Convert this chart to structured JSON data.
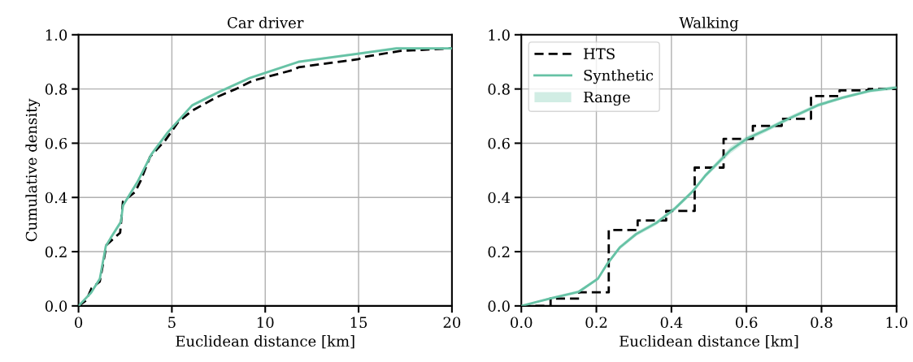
{
  "chart_data": [
    {
      "type": "line",
      "title": "Car driver",
      "xlabel": "Euclidean distance [km]",
      "ylabel": "Cumulative density",
      "xlim": [
        0,
        20
      ],
      "ylim": [
        0,
        1.0
      ],
      "xticks": [
        0,
        5,
        10,
        15,
        20
      ],
      "yticks": [
        {
          "value": 0,
          "label": "0.0"
        },
        {
          "value": 0.2,
          "label": "0.2"
        },
        {
          "value": 0.4,
          "label": "0.4"
        },
        {
          "value": 0.6,
          "label": "0.6"
        },
        {
          "value": 0.8,
          "label": "0.8"
        },
        {
          "value": 1.0,
          "label": "1.0"
        }
      ],
      "grid": true,
      "legend": false,
      "series": [
        {
          "type": "line",
          "color": "#000000",
          "line_style": "dashed",
          "x": [
            0,
            0.41,
            0.7,
            1.14,
            1.5,
            2.23,
            2.38,
            3.03,
            3.32,
            3.83,
            4.64,
            5.36,
            6.09,
            7.4,
            8.43,
            9.3,
            11.49,
            11.78,
            14.99,
            15.42,
            17.2,
            20
          ],
          "values": [
            0,
            0.02,
            0.065,
            0.09,
            0.225,
            0.27,
            0.385,
            0.42,
            0.46,
            0.55,
            0.61,
            0.68,
            0.72,
            0.77,
            0.8,
            0.83,
            0.87,
            0.88,
            0.91,
            0.92,
            0.94,
            0.95
          ]
        },
        {
          "type": "line",
          "color": "#66c2a5",
          "line_style": "solid",
          "x": [
            0,
            0.67,
            1.14,
            1.46,
            1.72,
            2.27,
            2.38,
            3.18,
            3.91,
            4.78,
            6.09,
            7.55,
            9.15,
            11.78,
            14.99,
            17.03,
            20
          ],
          "values": [
            0,
            0.048,
            0.1,
            0.22,
            0.25,
            0.31,
            0.37,
            0.46,
            0.56,
            0.64,
            0.74,
            0.79,
            0.84,
            0.9,
            0.93,
            0.95,
            0.95
          ],
          "lower": [
            0,
            0.043,
            0.094,
            0.212,
            0.242,
            0.3,
            0.362,
            0.452,
            0.552,
            0.633,
            0.734,
            0.784,
            0.835,
            0.895,
            0.925,
            0.945,
            0.947
          ],
          "upper": [
            0,
            0.053,
            0.106,
            0.228,
            0.258,
            0.32,
            0.378,
            0.468,
            0.568,
            0.647,
            0.746,
            0.796,
            0.845,
            0.905,
            0.935,
            0.955,
            0.953
          ]
        }
      ]
    },
    {
      "type": "line",
      "title": "Walking",
      "xlabel": "Euclidean distance [km]",
      "xlim": [
        0,
        1.0
      ],
      "ylim": [
        0,
        1.0
      ],
      "xticks": [
        {
          "value": 0,
          "label": "0.0"
        },
        {
          "value": 0.2,
          "label": "0.2"
        },
        {
          "value": 0.4,
          "label": "0.4"
        },
        {
          "value": 0.6,
          "label": "0.6"
        },
        {
          "value": 0.8,
          "label": "0.8"
        },
        {
          "value": 1.0,
          "label": "1.0"
        }
      ],
      "yticks": [
        {
          "value": 0,
          "label": "0.0"
        },
        {
          "value": 0.2,
          "label": "0.2"
        },
        {
          "value": 0.4,
          "label": "0.4"
        },
        {
          "value": 0.6,
          "label": "0.6"
        },
        {
          "value": 0.8,
          "label": "0.8"
        },
        {
          "value": 1.0,
          "label": "1.0"
        }
      ],
      "grid": true,
      "legend": "top left",
      "series": [
        {
          "name": "HTS",
          "type": "step",
          "color": "#000000",
          "line_style": "dashed",
          "x": [
            0,
            0.078,
            0.154,
            0.233,
            0.31,
            0.386,
            0.462,
            0.539,
            0.617,
            0.694,
            0.772,
            0.848,
            0.925,
            1.0
          ],
          "values": [
            0,
            0.027,
            0.05,
            0.28,
            0.315,
            0.35,
            0.51,
            0.616,
            0.664,
            0.69,
            0.774,
            0.795,
            0.8,
            0.8
          ]
        },
        {
          "name": "Synthetic",
          "type": "line",
          "color": "#66c2a5",
          "line_style": "solid",
          "x": [
            0,
            0.076,
            0.153,
            0.204,
            0.229,
            0.262,
            0.306,
            0.36,
            0.41,
            0.455,
            0.49,
            0.557,
            0.6,
            0.652,
            0.71,
            0.79,
            0.856,
            0.929,
            1.0
          ],
          "values": [
            0,
            0.027,
            0.052,
            0.1,
            0.155,
            0.215,
            0.265,
            0.306,
            0.36,
            0.42,
            0.48,
            0.574,
            0.616,
            0.649,
            0.689,
            0.74,
            0.768,
            0.793,
            0.805
          ],
          "lower": [
            0,
            0.022,
            0.046,
            0.094,
            0.148,
            0.207,
            0.257,
            0.298,
            0.352,
            0.412,
            0.472,
            0.562,
            0.606,
            0.641,
            0.681,
            0.733,
            0.762,
            0.787,
            0.798
          ],
          "upper": [
            0,
            0.032,
            0.058,
            0.106,
            0.162,
            0.223,
            0.273,
            0.314,
            0.368,
            0.428,
            0.488,
            0.586,
            0.626,
            0.657,
            0.697,
            0.747,
            0.774,
            0.799,
            0.812
          ]
        },
        {
          "name": "Range",
          "type": "area",
          "color": "#66c2a5"
        }
      ]
    }
  ]
}
